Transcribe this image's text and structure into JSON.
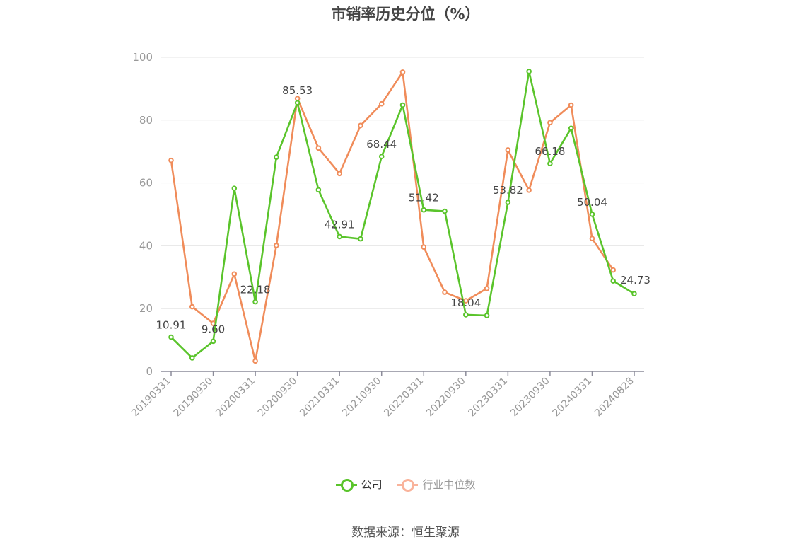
{
  "title": "市销率历史分位（%）",
  "source": "数据来源：恒生聚源",
  "legend": [
    {
      "label": "公司",
      "color": "#5ac42b"
    },
    {
      "label": "行业中位数",
      "color": "#f9b39b"
    }
  ],
  "chart_data": {
    "type": "line",
    "title": "市销率历史分位（%）",
    "ylim": [
      0,
      100
    ],
    "yticks": [
      0,
      20,
      40,
      60,
      80,
      100
    ],
    "grid": true,
    "legend_position": "bottom",
    "x": [
      "20190331",
      "20190630",
      "20190930",
      "20191231",
      "20200331",
      "20200630",
      "20200930",
      "20201231",
      "20210331",
      "20210630",
      "20210930",
      "20211231",
      "20220331",
      "20220630",
      "20220930",
      "20221231",
      "20230331",
      "20230630",
      "20230930",
      "20231231",
      "20240331",
      "20240630",
      "20240828"
    ],
    "xticks": [
      "20190331",
      "20190930",
      "20200331",
      "20200930",
      "20210331",
      "20210930",
      "20220331",
      "20220930",
      "20230331",
      "20230930",
      "20240331",
      "20240828"
    ],
    "series": [
      {
        "name": "公司",
        "color": "#5ac42b",
        "values": [
          10.91,
          4.3,
          9.6,
          58.3,
          22.18,
          68.2,
          85.53,
          57.8,
          42.91,
          42.2,
          68.44,
          84.8,
          51.42,
          51.0,
          18.04,
          17.8,
          53.82,
          95.5,
          66.18,
          77.4,
          50.04,
          28.8,
          24.73
        ],
        "labels": [
          10.91,
          null,
          9.6,
          null,
          22.18,
          null,
          85.53,
          null,
          42.91,
          null,
          68.44,
          null,
          51.42,
          null,
          18.04,
          null,
          53.82,
          null,
          66.18,
          null,
          50.04,
          null,
          24.73
        ]
      },
      {
        "name": "行业中位数",
        "color": "#f08c5a",
        "values": [
          67.2,
          20.6,
          15.3,
          31.0,
          3.3,
          40.1,
          86.9,
          71.1,
          63.0,
          78.3,
          85.2,
          95.3,
          39.6,
          25.2,
          22.5,
          26.4,
          70.5,
          57.7,
          79.2,
          84.8,
          42.3,
          32.3,
          null
        ]
      }
    ]
  }
}
